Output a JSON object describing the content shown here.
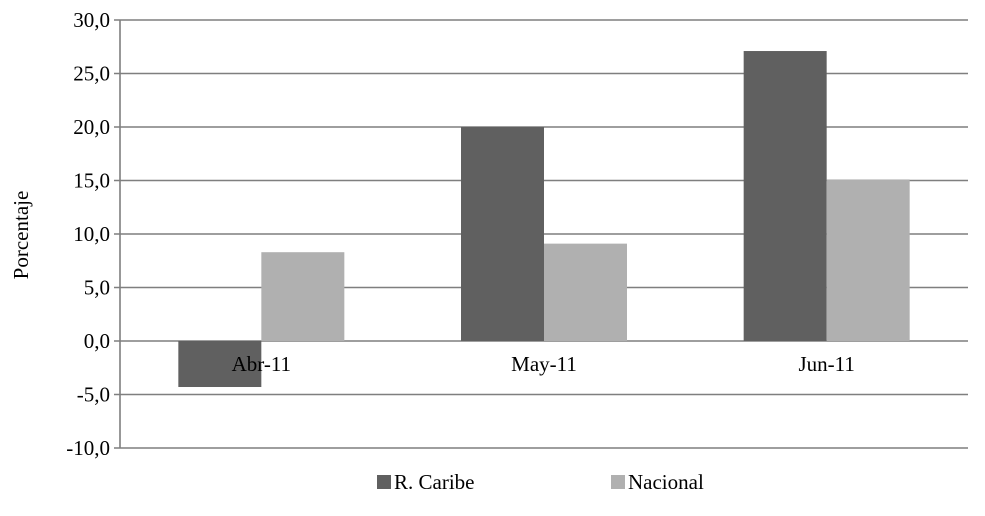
{
  "chart_data": {
    "type": "bar",
    "title": "",
    "xlabel": "",
    "ylabel": "Porcentaje",
    "categories": [
      "Abr-11",
      "May-11",
      "Jun-11"
    ],
    "ylim": [
      -10,
      30
    ],
    "yticks": [
      "-10,0",
      "-5,0",
      "0,0",
      "5,0",
      "10,0",
      "15,0",
      "20,0",
      "25,0",
      "30,0"
    ],
    "grid": true,
    "legend": "bottom",
    "series": [
      {
        "name": "R. Caribe",
        "values": [
          -4.3,
          20.0,
          27.1
        ],
        "color": "#606060"
      },
      {
        "name": "Nacional",
        "values": [
          8.3,
          9.1,
          15.1
        ],
        "color": "#b0b0b0"
      }
    ]
  }
}
